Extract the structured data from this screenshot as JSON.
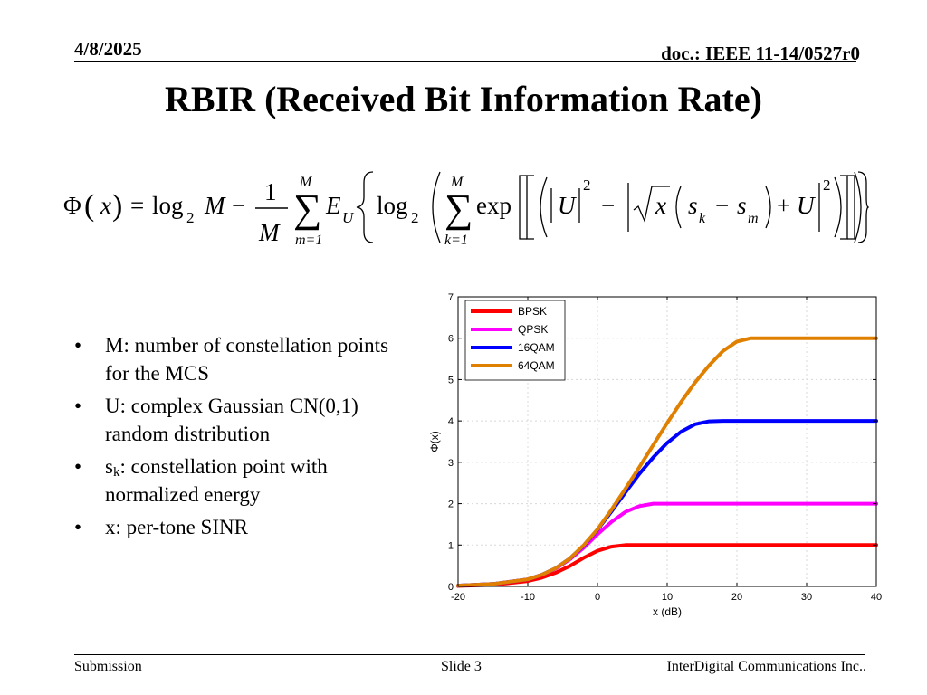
{
  "header": {
    "date": "4/8/2025",
    "doc": "doc.: IEEE 11-14/0527r0"
  },
  "title": "RBIR (Received Bit Information Rate)",
  "formula": {
    "phi": "Φ",
    "x": "x",
    "eq": "=",
    "log": "log",
    "sub2": "2",
    "M": "M",
    "minus": "−",
    "one": "1",
    "sigma": "∑",
    "m_eq_1": "m=1",
    "k_eq_1": "k=1",
    "E": "E",
    "U": "U",
    "exp": "exp",
    "sup2": "2",
    "s": "s",
    "k": "k",
    "m": "m",
    "plus": "+"
  },
  "bullets": [
    {
      "text": "M: number of constellation points  for the MCS"
    },
    {
      "text": "U: complex Gaussian CN(0,1) random distribution"
    },
    {
      "pre": "s",
      "sub": "k",
      "text": ": constellation point with normalized energy"
    },
    {
      "text": "x: per-tone SINR"
    }
  ],
  "bullet_symbol": "•",
  "chart_data": {
    "type": "line",
    "xlabel": "x (dB)",
    "ylabel": "Φ(x)",
    "xlim": [
      -20,
      40
    ],
    "ylim": [
      0,
      7
    ],
    "xticks": [
      -20,
      -10,
      0,
      10,
      20,
      30,
      40
    ],
    "yticks": [
      0,
      1,
      2,
      3,
      4,
      5,
      6,
      7
    ],
    "grid": true,
    "legend_position": "top-left",
    "x": [
      -20,
      -15,
      -10,
      -8,
      -6,
      -4,
      -2,
      0,
      2,
      4,
      6,
      8,
      10,
      12,
      14,
      16,
      18,
      20,
      22,
      24,
      26,
      30,
      35,
      40
    ],
    "series": [
      {
        "name": "BPSK",
        "color": "#ff0000",
        "values": [
          0.01,
          0.04,
          0.13,
          0.21,
          0.33,
          0.49,
          0.69,
          0.86,
          0.96,
          1.0,
          1.0,
          1.0,
          1.0,
          1.0,
          1.0,
          1.0,
          1.0,
          1.0,
          1.0,
          1.0,
          1.0,
          1.0,
          1.0,
          1.0
        ]
      },
      {
        "name": "QPSK",
        "color": "#ff00ff",
        "values": [
          0.02,
          0.06,
          0.17,
          0.28,
          0.43,
          0.65,
          0.93,
          1.26,
          1.56,
          1.8,
          1.94,
          2.0,
          2.0,
          2.0,
          2.0,
          2.0,
          2.0,
          2.0,
          2.0,
          2.0,
          2.0,
          2.0,
          2.0,
          2.0
        ]
      },
      {
        "name": "16QAM",
        "color": "#0000ff",
        "values": [
          0.02,
          0.06,
          0.17,
          0.28,
          0.44,
          0.67,
          0.98,
          1.37,
          1.81,
          2.27,
          2.72,
          3.12,
          3.47,
          3.74,
          3.92,
          3.99,
          4.0,
          4.0,
          4.0,
          4.0,
          4.0,
          4.0,
          4.0,
          4.0
        ]
      },
      {
        "name": "64QAM",
        "color": "#e08000",
        "values": [
          0.02,
          0.06,
          0.17,
          0.28,
          0.44,
          0.67,
          0.99,
          1.38,
          1.85,
          2.36,
          2.88,
          3.42,
          3.95,
          4.46,
          4.93,
          5.34,
          5.69,
          5.92,
          6.0,
          6.0,
          6.0,
          6.0,
          6.0,
          6.0
        ]
      }
    ]
  },
  "footer": {
    "left": "Submission",
    "center": "Slide 3",
    "right": "InterDigital Communications Inc.."
  }
}
